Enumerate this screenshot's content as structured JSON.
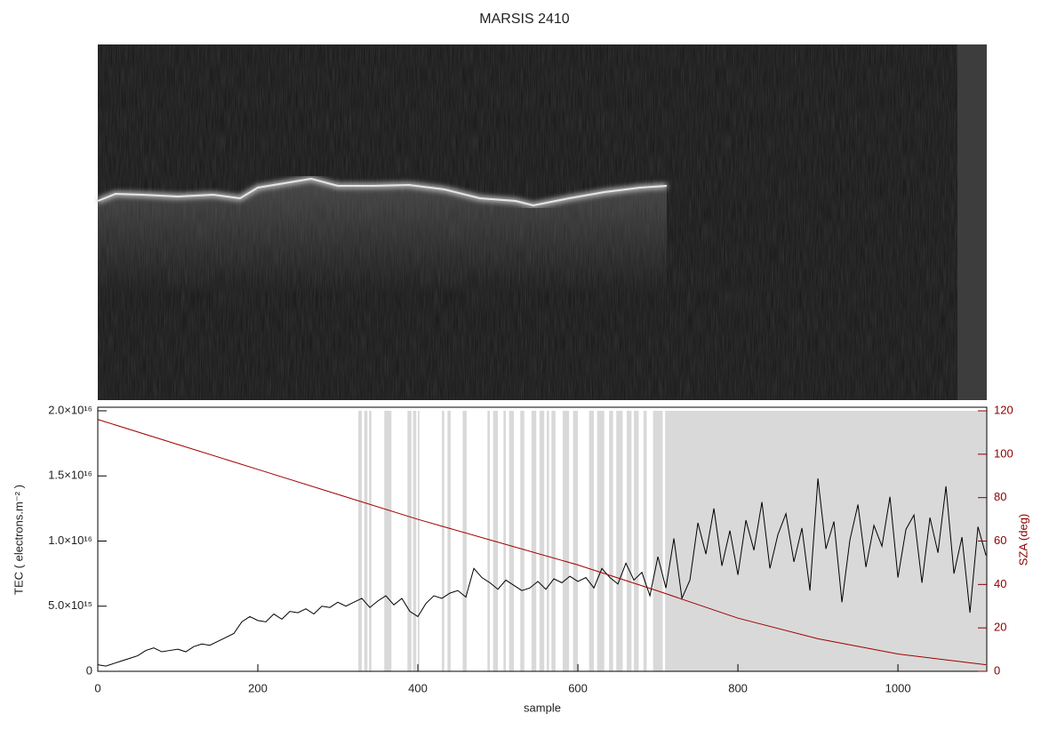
{
  "chart_data": {
    "type": "line",
    "title": "MARSIS 2410",
    "xlabel": "sample",
    "ylabel": "TEC ( electrons.m⁻² )",
    "y2label": "SZA (deg)",
    "xlim": [
      0,
      1111
    ],
    "ylim": [
      0,
      2e+16
    ],
    "y2lim": [
      0,
      120
    ],
    "xticks": [
      0,
      200,
      400,
      600,
      800,
      1000
    ],
    "yticks": [
      0,
      {
        "value": 5000000000000000.0,
        "label": "5.0×10¹⁵"
      },
      {
        "value": 1e+16,
        "label": "1.0×10¹⁶"
      },
      {
        "value": 1.5e+16,
        "label": "1.5×10¹⁶"
      },
      {
        "value": 2e+16,
        "label": "2.0×10¹⁶"
      }
    ],
    "y2ticks": [
      0,
      20,
      40,
      60,
      80,
      100,
      120
    ],
    "shaded": {
      "color": "#d9d9d9",
      "intervals": [
        [
          325.6,
          330
        ],
        [
          333,
          337
        ],
        [
          339,
          342
        ],
        [
          358,
          367
        ],
        [
          387,
          392
        ],
        [
          394,
          398
        ],
        [
          400,
          402
        ],
        [
          430,
          433
        ],
        [
          437,
          441
        ],
        [
          456,
          461
        ],
        [
          487,
          490
        ],
        [
          494,
          500
        ],
        [
          507,
          510
        ],
        [
          514,
          520
        ],
        [
          528,
          533
        ],
        [
          542,
          548
        ],
        [
          552,
          558
        ],
        [
          561,
          564
        ],
        [
          567,
          572
        ],
        [
          581,
          589
        ],
        [
          594,
          600
        ],
        [
          614,
          620
        ],
        [
          624,
          633
        ],
        [
          639,
          644
        ],
        [
          648,
          656
        ],
        [
          661,
          667
        ],
        [
          670,
          676
        ],
        [
          682,
          686
        ],
        [
          694,
          706
        ],
        [
          709,
          1111
        ]
      ]
    },
    "series": [
      {
        "color": "#000000",
        "x": [
          0,
          10,
          20,
          30,
          40,
          50,
          60,
          70,
          80,
          90,
          100,
          110,
          120,
          130,
          140,
          150,
          160,
          170,
          180,
          190,
          200,
          210,
          220,
          230,
          240,
          250,
          260,
          270,
          280,
          290,
          300,
          310,
          320,
          330,
          340,
          350,
          360,
          370,
          380,
          390,
          400,
          410,
          420,
          430,
          440,
          450,
          460,
          470,
          480,
          490,
          500,
          510,
          520,
          530,
          540,
          550,
          560,
          570,
          580,
          590,
          600,
          610,
          620,
          630,
          640,
          650,
          660,
          670,
          680,
          690,
          700,
          710,
          720,
          730,
          740,
          750,
          760,
          770,
          780,
          790,
          800,
          810,
          820,
          830,
          840,
          850,
          860,
          870,
          880,
          890,
          900,
          910,
          920,
          930,
          940,
          950,
          960,
          970,
          980,
          990,
          1000,
          1010,
          1020,
          1030,
          1040,
          1050,
          1060,
          1070,
          1080,
          1090,
          1100,
          1110
        ],
        "values": [
          500000000000000.0,
          400000000000000.0,
          600000000000000.0,
          800000000000000.0,
          1000000000000000.0,
          1200000000000000.0,
          1600000000000000.0,
          1800000000000000.0,
          1500000000000000.0,
          1600000000000000.0,
          1700000000000000.0,
          1500000000000000.0,
          1900000000000000.0,
          2100000000000000.0,
          2000000000000000.0,
          2300000000000000.0,
          2600000000000000.0,
          2900000000000000.0,
          3800000000000000.0,
          4200000000000000.0,
          3900000000000000.0,
          3800000000000000.0,
          4400000000000000.0,
          4000000000000000.0,
          4600000000000000.0,
          4500000000000000.0,
          4800000000000000.0,
          4400000000000000.0,
          5000000000000000.0,
          4900000000000000.0,
          5300000000000000.0,
          5000000000000000.0,
          5300000000000000.0,
          5600000000000000.0,
          4900000000000000.0,
          5400000000000000.0,
          5800000000000000.0,
          5100000000000000.0,
          5600000000000000.0,
          4600000000000000.0,
          4200000000000000.0,
          5200000000000000.0,
          5800000000000000.0,
          5600000000000000.0,
          6000000000000000.0,
          6200000000000000.0,
          5700000000000000.0,
          7900000000000000.0,
          7200000000000000.0,
          6800000000000000.0,
          6300000000000000.0,
          7000000000000000.0,
          6600000000000000.0,
          6200000000000000.0,
          6400000000000000.0,
          6900000000000000.0,
          6300000000000000.0,
          7100000000000000.0,
          6800000000000000.0,
          7300000000000000.0,
          6900000000000000.0,
          7200000000000000.0,
          6400000000000000.0,
          7900000000000000.0,
          7200000000000000.0,
          6700000000000000.0,
          8300000000000000.0,
          7000000000000000.0,
          7600000000000000.0,
          5800000000000000.0,
          8800000000000000.0,
          6400000000000000.0,
          1.02e+16,
          5600000000000000.0,
          7000000000000000.0,
          1.14e+16,
          9000000000000000.0,
          1.25e+16,
          8100000000000000.0,
          1.08e+16,
          7400000000000000.0,
          1.16e+16,
          9300000000000000.0,
          1.3e+16,
          7900000000000000.0,
          1.05e+16,
          1.21e+16,
          8400000000000000.0,
          1.1e+16,
          6200000000000000.0,
          1.48e+16,
          9400000000000000.0,
          1.15e+16,
          5300000000000000.0,
          1.01e+16,
          1.28e+16,
          8000000000000000.0,
          1.12e+16,
          9600000000000000.0,
          1.34e+16,
          7200000000000000.0,
          1.09e+16,
          1.2e+16,
          6800000000000000.0,
          1.18e+16,
          9100000000000000.0,
          1.42e+16,
          7500000000000000.0,
          1.03e+16,
          4500000000000000.0,
          1.11e+16,
          8900000000000000.0
        ]
      },
      {
        "color": "#a00000",
        "axis": "y2",
        "x": [
          0,
          100,
          200,
          300,
          400,
          500,
          600,
          700,
          800,
          900,
          1000,
          1110
        ],
        "values": [
          116,
          104.5,
          93,
          81.5,
          70,
          59.5,
          49,
          37,
          24.5,
          15,
          8,
          3
        ]
      }
    ]
  }
}
